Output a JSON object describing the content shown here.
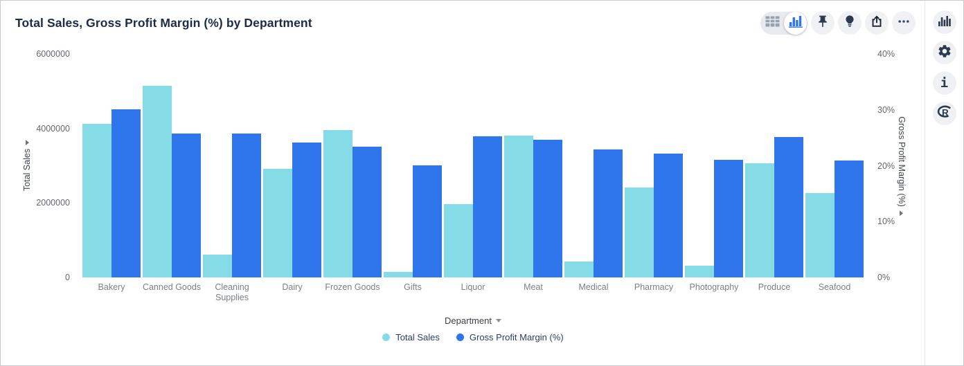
{
  "header": {
    "title": "Total Sales, Gross Profit Margin (%) by Department"
  },
  "toolbar": {
    "icons": [
      "table-view-icon",
      "bar-chart-view-icon",
      "pin-icon",
      "lightbulb-icon",
      "share-icon",
      "more-icon"
    ],
    "selected_view": "bar-chart-view"
  },
  "rail": {
    "icons": [
      "column-chart-icon",
      "settings-gear-icon",
      "info-icon",
      "r-script-icon"
    ]
  },
  "colors": {
    "total_sales": "#85dce7",
    "gross_profit_margin": "#2f76ec",
    "icon_navy": "#2c3a50",
    "accent_blue": "#2f76ec"
  },
  "chart_data": {
    "type": "bar",
    "title": "Total Sales, Gross Profit Margin (%) by Department",
    "xlabel": "Department",
    "grid": false,
    "legend_position": "bottom",
    "categories": [
      "Bakery",
      "Canned Goods",
      "Cleaning Supplies",
      "Dairy",
      "Frozen Goods",
      "Gifts",
      "Liquor",
      "Meat",
      "Medical",
      "Pharmacy",
      "Photography",
      "Produce",
      "Seafood"
    ],
    "series": [
      {
        "name": "Total Sales",
        "axis": "left",
        "color": "#85dce7",
        "values": [
          4130000,
          5150000,
          620000,
          2920000,
          3960000,
          150000,
          1970000,
          3800000,
          430000,
          2410000,
          310000,
          3060000,
          2260000
        ]
      },
      {
        "name": "Gross Profit Margin (%)",
        "axis": "right",
        "color": "#2f76ec",
        "values": [
          30.1,
          25.8,
          25.7,
          24.1,
          23.4,
          20.1,
          25.3,
          24.7,
          22.9,
          22.2,
          21.1,
          25.2,
          20.9
        ]
      }
    ],
    "left_axis": {
      "label": "Total Sales",
      "min": 0,
      "max": 6000000,
      "ticks": [
        {
          "label": "0",
          "value": 0
        },
        {
          "label": "2000000",
          "value": 2000000
        },
        {
          "label": "4000000",
          "value": 4000000
        },
        {
          "label": "6000000",
          "value": 6000000
        }
      ]
    },
    "right_axis": {
      "label": "Gross Profit Margin (%)",
      "min": 0,
      "max": 40,
      "ticks": [
        {
          "label": "0%",
          "value": 0
        },
        {
          "label": "10%",
          "value": 10
        },
        {
          "label": "20%",
          "value": 20
        },
        {
          "label": "30%",
          "value": 30
        },
        {
          "label": "40%",
          "value": 40
        }
      ]
    },
    "legend": [
      "Total Sales",
      "Gross Profit Margin (%)"
    ]
  }
}
